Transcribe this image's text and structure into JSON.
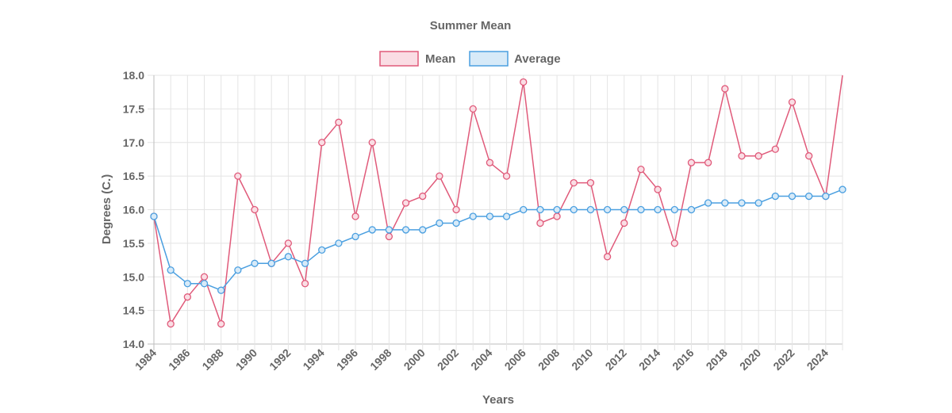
{
  "chart_data": {
    "type": "line",
    "title": "Summer Mean",
    "xlabel": "Years",
    "ylabel": "Degrees (C.)",
    "ylim": [
      14.0,
      18.0
    ],
    "y_ticks": [
      "14.0",
      "14.5",
      "15.0",
      "15.5",
      "16.0",
      "16.5",
      "17.0",
      "17.5",
      "18.0"
    ],
    "x_tick_labels": [
      "1984",
      "1986",
      "1988",
      "1990",
      "1992",
      "1994",
      "1996",
      "1998",
      "2000",
      "2002",
      "2004",
      "2006",
      "2008",
      "2010",
      "2012",
      "2014",
      "2016",
      "2018",
      "2020",
      "2022",
      "2024"
    ],
    "grid": true,
    "legend_position": "top",
    "x": [
      1984,
      1985,
      1986,
      1987,
      1988,
      1989,
      1990,
      1991,
      1992,
      1993,
      1994,
      1995,
      1996,
      1997,
      1998,
      1999,
      2000,
      2001,
      2002,
      2003,
      2004,
      2005,
      2006,
      2007,
      2008,
      2009,
      2010,
      2011,
      2012,
      2013,
      2014,
      2015,
      2016,
      2017,
      2018,
      2019,
      2020,
      2021,
      2022,
      2023,
      2024,
      2025
    ],
    "series": [
      {
        "name": "Mean",
        "color": "#e05a7a",
        "fill": "#fadde4",
        "values": [
          15.9,
          14.3,
          14.7,
          15.0,
          14.3,
          16.5,
          16.0,
          15.2,
          15.5,
          14.9,
          17.0,
          17.3,
          15.9,
          17.0,
          15.6,
          16.1,
          16.2,
          16.5,
          16.0,
          17.5,
          16.7,
          16.5,
          17.9,
          15.8,
          15.9,
          16.4,
          16.4,
          15.3,
          15.8,
          16.6,
          16.3,
          15.5,
          16.7,
          16.7,
          17.8,
          16.8,
          16.8,
          16.9,
          17.6,
          16.8,
          16.2,
          18.0
        ]
      },
      {
        "name": "Average",
        "color": "#4a9fe0",
        "fill": "#d7eaf8",
        "values": [
          15.9,
          15.1,
          14.9,
          14.9,
          14.8,
          15.1,
          15.2,
          15.2,
          15.3,
          15.2,
          15.4,
          15.5,
          15.6,
          15.7,
          15.7,
          15.7,
          15.7,
          15.8,
          15.8,
          15.9,
          15.9,
          15.9,
          16.0,
          16.0,
          16.0,
          16.0,
          16.0,
          16.0,
          16.0,
          16.0,
          16.0,
          16.0,
          16.0,
          16.1,
          16.1,
          16.1,
          16.1,
          16.2,
          16.2,
          16.2,
          16.2,
          16.3
        ]
      }
    ]
  }
}
